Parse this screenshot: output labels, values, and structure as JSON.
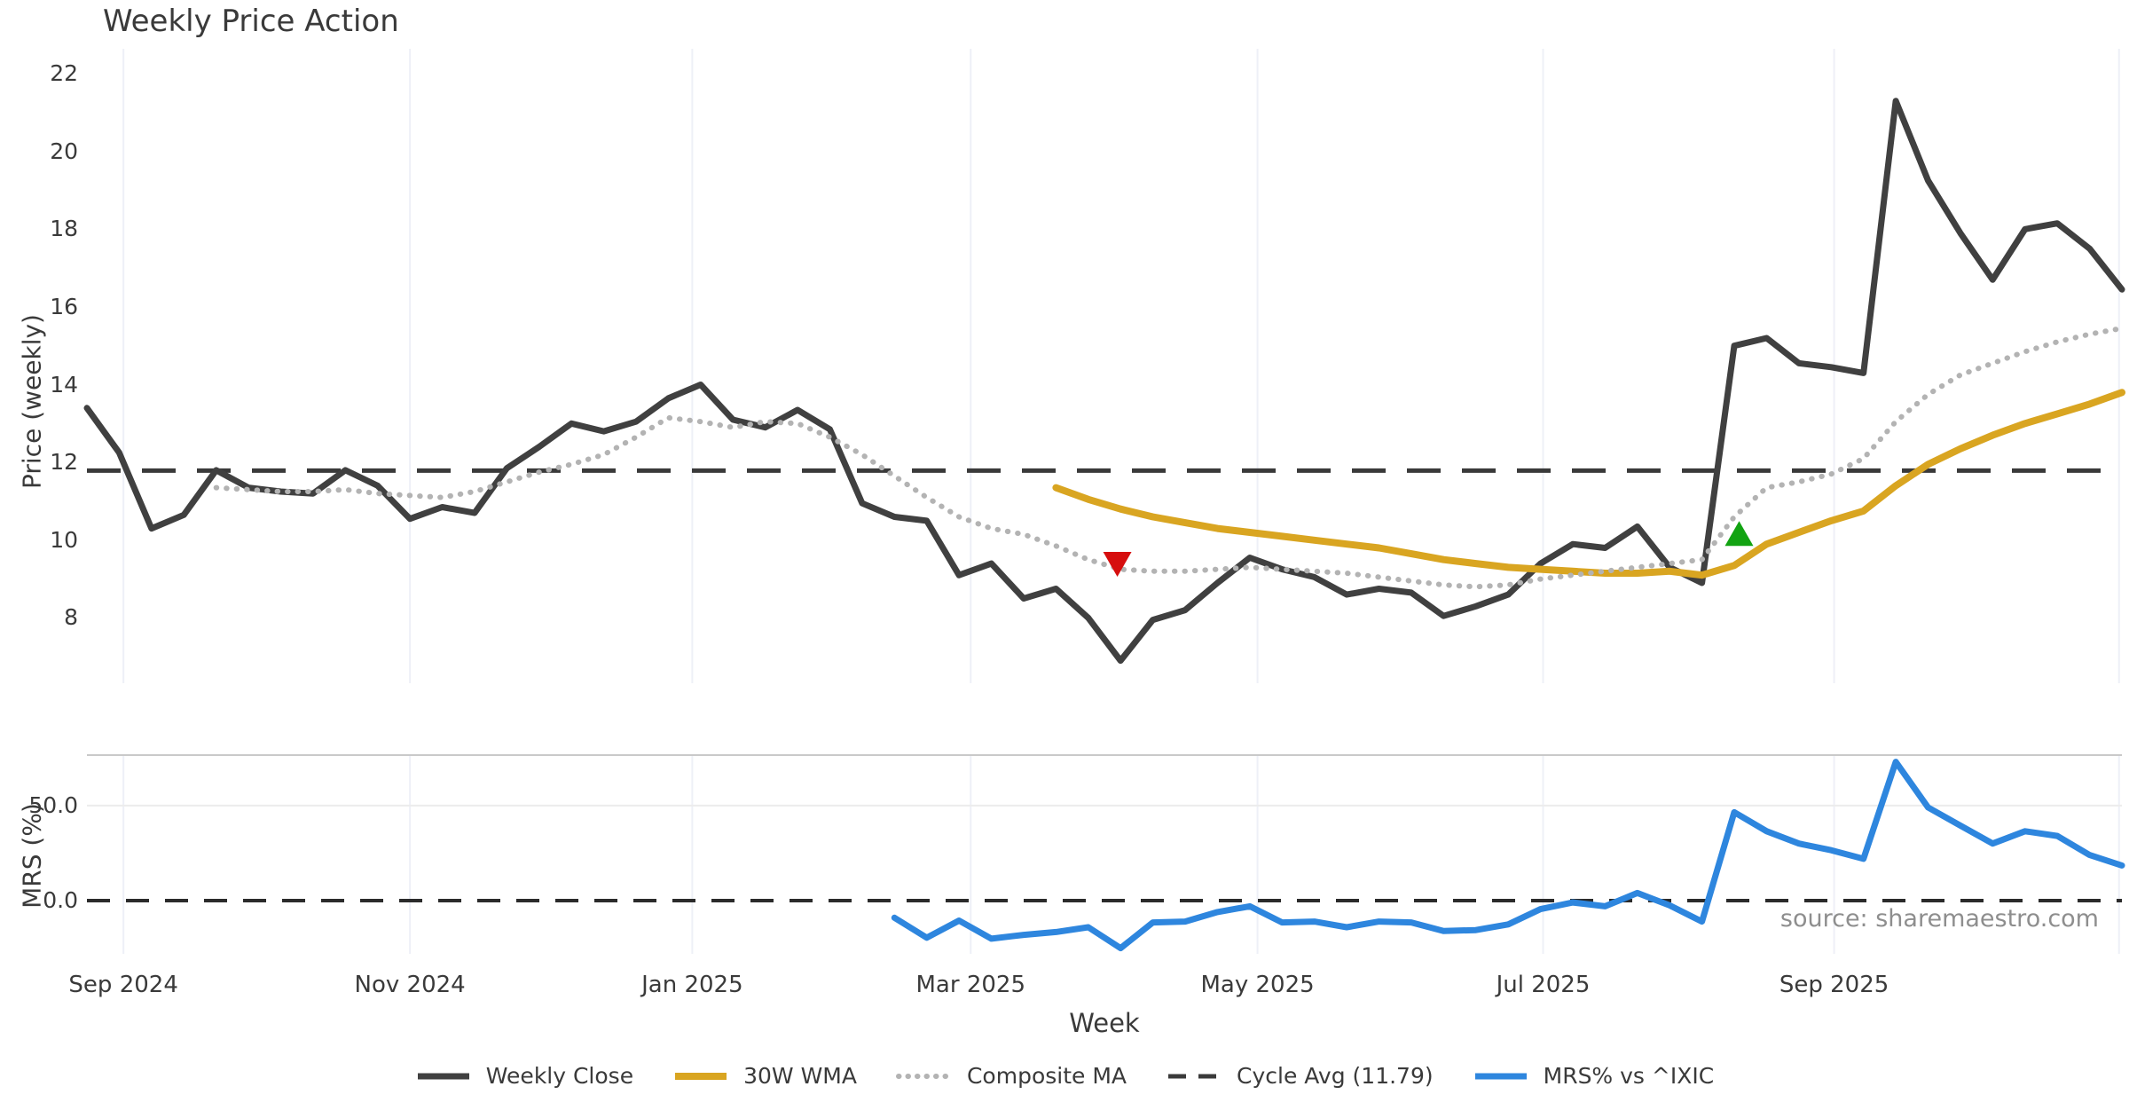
{
  "title": "Weekly Price Action",
  "source_note": "source: sharemaestro.com",
  "colors": {
    "weekly_close": "#404040",
    "wma_30w": "#d9a521",
    "composite_ma": "#b3b3b3",
    "cycle_avg": "#3a3a3a",
    "mrs_line": "#2e86de",
    "marker_sell": "#d60e0e",
    "marker_buy": "#12a312",
    "gridline": "#eef0f7",
    "panel_divider": "#c9c9c9",
    "mrs_gridline": "#ececec",
    "text": "#3a3a3a",
    "source_text": "#8e8e8e"
  },
  "legend": {
    "entries": [
      {
        "label": "Weekly Close",
        "color": "#404040",
        "line_style": "solid",
        "width": 7
      },
      {
        "label": "30W WMA",
        "color": "#d9a521",
        "line_style": "solid",
        "width": 8
      },
      {
        "label": "Composite MA",
        "color": "#b3b3b3",
        "line_style": "dotted",
        "width": 6
      },
      {
        "label": "Cycle Avg (11.79)",
        "color": "#3a3a3a",
        "line_style": "dashed",
        "width": 5
      },
      {
        "label": "MRS% vs ^IXIC",
        "color": "#2e86de",
        "line_style": "solid",
        "width": 7
      }
    ]
  },
  "chart_data": {
    "type": "line",
    "x_unit": "week_index",
    "x_range": [
      0,
      63
    ],
    "xlabel": "Week",
    "xticks": [
      {
        "label": "Sep 2024",
        "week": 1.13
      },
      {
        "label": "Nov 2024",
        "week": 10.0
      },
      {
        "label": "Jan 2025",
        "week": 18.74
      },
      {
        "label": "Mar 2025",
        "week": 27.36
      },
      {
        "label": "May 2025",
        "week": 36.24
      },
      {
        "label": "Jul 2025",
        "week": 45.08
      },
      {
        "label": "Sep 2025",
        "week": 54.09
      },
      {
        "label": "",
        "week": 62.91
      }
    ],
    "panels": [
      {
        "id": "price",
        "ylabel": "Price (weekly)",
        "ylim": [
          6.32,
          22.64
        ],
        "yticks": [
          8,
          10,
          12,
          14,
          16,
          18,
          20,
          22
        ],
        "cycle_avg": 11.79,
        "series": [
          {
            "name": "Weekly Close",
            "style": "solid",
            "color": "#404040",
            "width": 7,
            "values": [
              13.4,
              12.25,
              10.3,
              10.65,
              11.8,
              11.35,
              11.25,
              11.2,
              11.8,
              11.4,
              10.55,
              10.85,
              10.7,
              11.85,
              12.4,
              13.0,
              12.8,
              13.05,
              13.65,
              14.0,
              13.1,
              12.9,
              13.35,
              12.85,
              10.95,
              10.6,
              10.5,
              9.1,
              9.4,
              8.5,
              8.75,
              8.0,
              6.9,
              7.95,
              8.2,
              8.9,
              9.55,
              9.25,
              9.05,
              8.6,
              8.75,
              8.65,
              8.05,
              8.3,
              8.6,
              9.4,
              9.9,
              9.8,
              10.35,
              9.3,
              8.9,
              15.0,
              15.2,
              14.55,
              14.45,
              14.3,
              21.3,
              19.25,
              17.9,
              16.7,
              18.0,
              18.15,
              17.5,
              16.45
            ]
          },
          {
            "name": "30W WMA",
            "style": "solid",
            "color": "#d9a521",
            "width": 8,
            "values": [
              null,
              null,
              null,
              null,
              null,
              null,
              null,
              null,
              null,
              null,
              null,
              null,
              null,
              null,
              null,
              null,
              null,
              null,
              null,
              null,
              null,
              null,
              null,
              null,
              null,
              null,
              null,
              null,
              null,
              null,
              11.35,
              11.05,
              10.8,
              10.6,
              10.45,
              10.3,
              10.2,
              10.1,
              10.0,
              9.9,
              9.8,
              9.65,
              9.5,
              9.4,
              9.3,
              9.25,
              9.2,
              9.15,
              9.15,
              9.2,
              9.1,
              9.35,
              9.9,
              10.2,
              10.5,
              10.75,
              11.4,
              11.95,
              12.35,
              12.7,
              13.0,
              13.25,
              13.5,
              13.8
            ]
          },
          {
            "name": "Composite MA",
            "style": "dotted",
            "color": "#b3b3b3",
            "width": 6,
            "values": [
              null,
              null,
              null,
              null,
              11.35,
              11.3,
              11.25,
              11.25,
              11.3,
              11.2,
              11.15,
              11.1,
              11.25,
              11.5,
              11.75,
              11.95,
              12.2,
              12.65,
              13.15,
              13.05,
              12.9,
              13.05,
              13.0,
              12.65,
              12.2,
              11.65,
              11.1,
              10.6,
              10.3,
              10.15,
              9.85,
              9.5,
              9.25,
              9.2,
              9.2,
              9.25,
              9.3,
              9.25,
              9.2,
              9.15,
              9.05,
              8.95,
              8.85,
              8.8,
              8.85,
              9.0,
              9.1,
              9.2,
              9.3,
              9.4,
              9.5,
              10.6,
              11.35,
              11.5,
              11.7,
              12.1,
              13.05,
              13.75,
              14.25,
              14.55,
              14.85,
              15.1,
              15.3,
              15.45
            ]
          }
        ],
        "markers": [
          {
            "name": "sell-signal",
            "shape": "triangle-down",
            "color": "#d60e0e",
            "week": 31.9,
            "value": 9.4
          },
          {
            "name": "buy-signal",
            "shape": "triangle-up",
            "color": "#12a312",
            "week": 51.15,
            "value": 10.15
          }
        ]
      },
      {
        "id": "mrs",
        "ylabel": "MRS (%)",
        "ylim": [
          -28,
          77
        ],
        "yticks": [
          0,
          50
        ],
        "ytick_labels": [
          "0.0",
          "50.0"
        ],
        "zero_line_dashed": true,
        "series": [
          {
            "name": "MRS% vs ^IXIC",
            "style": "solid",
            "color": "#2e86de",
            "width": 7,
            "values": [
              null,
              null,
              null,
              null,
              null,
              null,
              null,
              null,
              null,
              null,
              null,
              null,
              null,
              null,
              null,
              null,
              null,
              null,
              null,
              null,
              null,
              null,
              null,
              null,
              null,
              -9,
              -19.5,
              -10.5,
              -20,
              -18,
              -16.5,
              -14,
              -25,
              -11.5,
              -11,
              -6,
              -3,
              -11.5,
              -11,
              -14,
              -11,
              -11.5,
              -16,
              -15.5,
              -12.5,
              -4.5,
              -1,
              -3,
              4,
              -2.5,
              -11,
              46.5,
              36.5,
              30,
              26.5,
              22,
              73,
              49,
              39.5,
              30,
              36.5,
              34,
              24,
              18.5
            ]
          }
        ]
      }
    ]
  }
}
